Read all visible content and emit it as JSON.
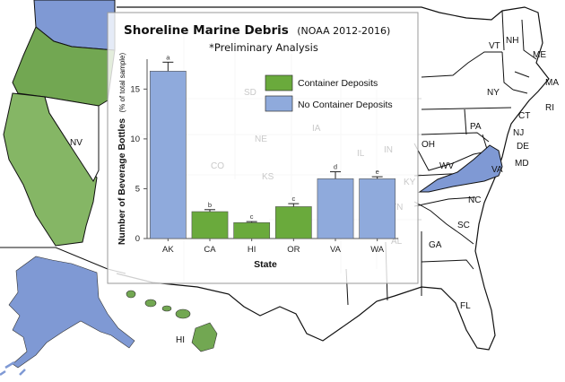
{
  "map": {
    "state_labels": {
      "me": "ME",
      "nh": "NH",
      "vt": "VT",
      "ma": "MA",
      "ri": "RI",
      "ct": "CT",
      "ny": "NY",
      "pa": "PA",
      "nj": "NJ",
      "de": "DE",
      "md": "MD",
      "oh": "OH",
      "wv": "WV",
      "va": "VA",
      "nc": "NC",
      "sc": "SC",
      "ga": "GA",
      "fl": "FL",
      "nv": "NV",
      "hi": "HI"
    },
    "ghost_labels": {
      "sd": "SD",
      "ne": "NE",
      "ks": "KS",
      "co": "CO",
      "ia": "IA",
      "il": "IL",
      "in": "IN",
      "ky": "KY",
      "tn": "TN",
      "al": "AL"
    },
    "colors": {
      "container_deposit_states": "#72a752",
      "no_container_deposit_states": "#7f99d4",
      "state_outline": "#111111"
    }
  },
  "chart_data": {
    "type": "bar",
    "title": "Shoreline Marine Debris",
    "title_suffix": "(NOAA 2012-2016)",
    "subtitle": "*Preliminary Analysis",
    "xlabel": "State",
    "ylabel": "Number of Beverage Bottles",
    "ylabel_suffix": "(% of total sample)",
    "categories": [
      "AK",
      "CA",
      "HI",
      "OR",
      "VA",
      "WA"
    ],
    "values": [
      16.8,
      2.7,
      1.6,
      3.2,
      6.0,
      6.0
    ],
    "errors": [
      0.9,
      0.2,
      0.1,
      0.3,
      0.7,
      0.2
    ],
    "significance_letters": [
      "a",
      "b",
      "c",
      "c",
      "d",
      "e"
    ],
    "groups": [
      "No Container Deposits",
      "Container Deposits",
      "Container Deposits",
      "Container Deposits",
      "No Container Deposits",
      "No Container Deposits"
    ],
    "ylim": [
      0,
      18
    ],
    "yticks": [
      0,
      5,
      10,
      15
    ],
    "legend": [
      {
        "label": "Container Deposits",
        "color": "#6aaa3c"
      },
      {
        "label": "No Container Deposits",
        "color": "#8faadc"
      }
    ],
    "legend_position": "top-right",
    "grid": false
  }
}
